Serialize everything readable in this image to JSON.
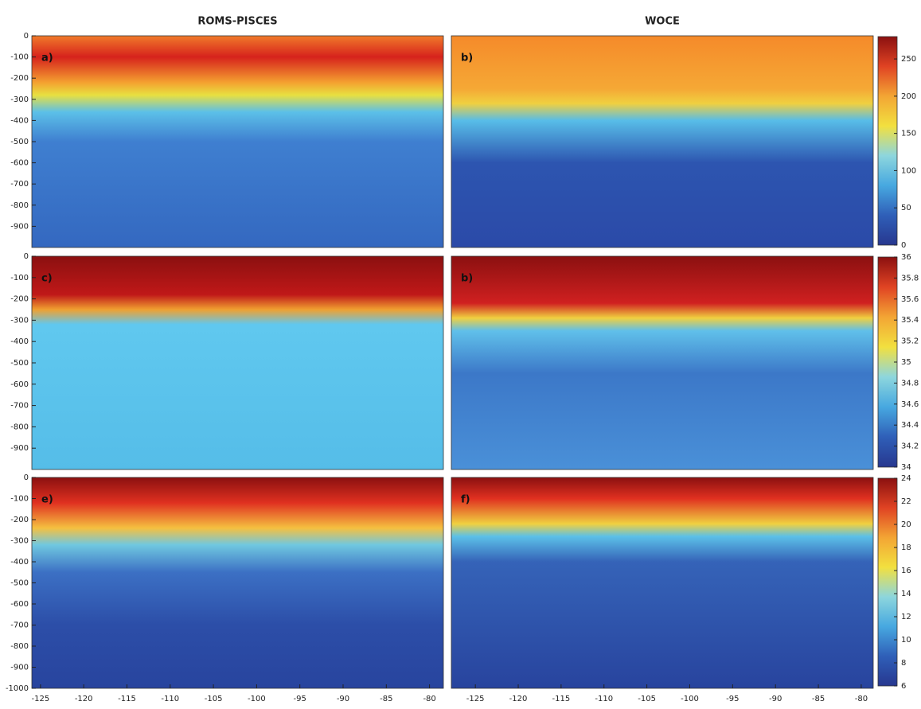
{
  "chart_data": [
    {
      "type": "heatmap",
      "title": "ROMS-PISCES",
      "label": "a)",
      "xlim": [
        -126,
        -78.4
      ],
      "ylim": [
        -1000,
        0
      ],
      "yticks": [
        0,
        -100,
        -200,
        -300,
        -400,
        -500,
        -600,
        -700,
        -800,
        -900
      ]
    },
    {
      "type": "heatmap",
      "title": "WOCE",
      "label": "b)",
      "xlim": [
        -127.8,
        -78.6
      ],
      "ylim": [
        -1000,
        0
      ],
      "colorbar": {
        "lim": [
          0,
          280
        ],
        "ticks": [
          0,
          50,
          100,
          150,
          200,
          250
        ],
        "colors": [
          "#27378f",
          "#2f5fb8",
          "#47a8e0",
          "#8dd6dd",
          "#f2e03f",
          "#f3a534",
          "#e04323",
          "#8b1010"
        ]
      }
    },
    {
      "type": "heatmap",
      "label": "c)",
      "xlim": [
        -126,
        -78.4
      ],
      "ylim": [
        -1000,
        0
      ],
      "yticks": [
        0,
        -100,
        -200,
        -300,
        -400,
        -500,
        -600,
        -700,
        -800,
        -900
      ]
    },
    {
      "type": "heatmap",
      "label": "b)",
      "xlim": [
        -127.8,
        -78.6
      ],
      "ylim": [
        -1000,
        0
      ],
      "colorbar": {
        "lim": [
          34,
          36
        ],
        "ticks": [
          34,
          34.2,
          34.4,
          34.6,
          34.8,
          35,
          35.2,
          35.4,
          35.6,
          35.8,
          36
        ],
        "colors": [
          "#27378f",
          "#2f5fb8",
          "#47a8e0",
          "#8dd6dd",
          "#f2e03f",
          "#f3a534",
          "#e04323",
          "#8b1010"
        ]
      }
    },
    {
      "type": "heatmap",
      "label": "e)",
      "xlim": [
        -126,
        -78.4
      ],
      "ylim": [
        -1000,
        0
      ],
      "yticks": [
        0,
        -100,
        -200,
        -300,
        -400,
        -500,
        -600,
        -700,
        -800,
        -900,
        -1000
      ],
      "xticks": [
        -125,
        -120,
        -115,
        -110,
        -105,
        -100,
        -95,
        -90,
        -85,
        -80
      ]
    },
    {
      "type": "heatmap",
      "label": "f)",
      "xlim": [
        -127.8,
        -78.6
      ],
      "ylim": [
        -1000,
        0
      ],
      "xticks": [
        -125,
        -120,
        -115,
        -110,
        -105,
        -100,
        -95,
        -90,
        -85,
        -80
      ],
      "colorbar": {
        "lim": [
          6,
          24
        ],
        "ticks": [
          6,
          8,
          10,
          12,
          14,
          16,
          18,
          20,
          22,
          24
        ],
        "colors": [
          "#27378f",
          "#2f5fb8",
          "#47a8e0",
          "#8dd6dd",
          "#f2e03f",
          "#f3a534",
          "#e04323",
          "#8b1010"
        ]
      }
    }
  ]
}
